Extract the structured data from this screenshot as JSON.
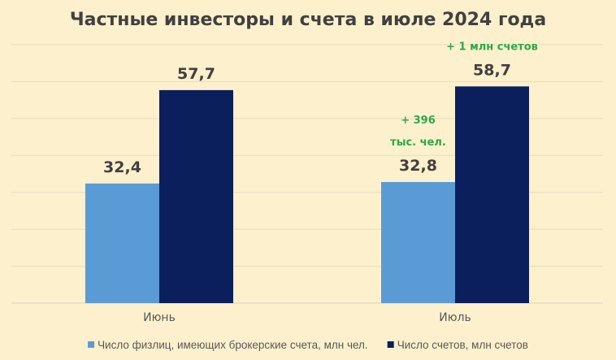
{
  "chart_data": {
    "type": "bar",
    "title": "Частные инвесторы и счета в июле 2024 года",
    "categories": [
      "Июнь",
      "Июль"
    ],
    "series": [
      {
        "name": "Число физлиц, имеющих брокерские счета, млн чел.",
        "values": [
          32.4,
          32.8
        ],
        "labels": [
          "32,4",
          "32,8"
        ],
        "color": "#5b9bd5"
      },
      {
        "name": "Число счетов, млн счетов",
        "values": [
          57.7,
          58.7
        ],
        "labels": [
          "57,7",
          "58,7"
        ],
        "color": "#0b1f5c"
      }
    ],
    "annotations": [
      {
        "category": "Июль",
        "series": 0,
        "lines": [
          "+ 396",
          "тыс. чел."
        ]
      },
      {
        "category": "Июль",
        "series": 1,
        "lines": [
          "+ 1 млн счетов"
        ]
      }
    ],
    "annotation_color": "#2ea84a",
    "ylim": [
      0,
      70
    ],
    "grid": true,
    "y_axis_labels": false,
    "legend": "bottom",
    "xlabel": "",
    "ylabel": ""
  }
}
